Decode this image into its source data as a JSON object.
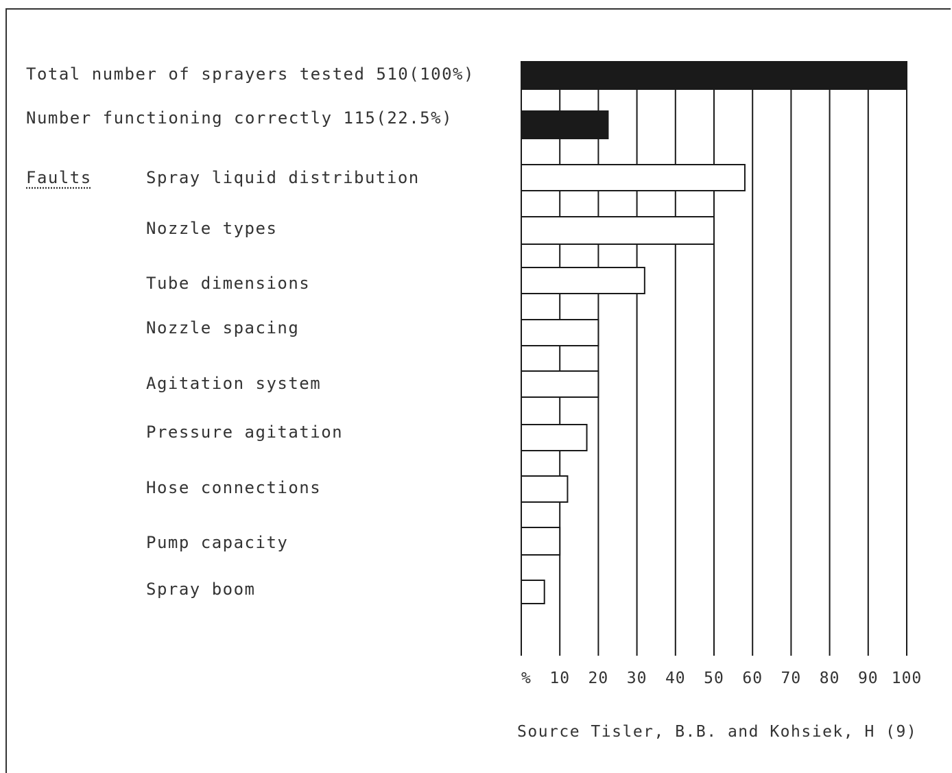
{
  "header": {
    "total_label": "Total number of sprayers tested 510(100%)",
    "correct_label": "Number functioning correctly 115(22.5%)",
    "faults_label": "Faults"
  },
  "faults": [
    "Spray liquid distribution",
    "Nozzle types",
    "Tube dimensions",
    "Nozzle spacing",
    "Agitation system",
    "Pressure agitation",
    "Hose connections",
    "Pump capacity",
    "Spray boom"
  ],
  "source": "Source Tisler, B.B. and Kohsiek, H (9)",
  "chart_data": {
    "type": "bar",
    "orientation": "horizontal",
    "categories": [
      "Total number of sprayers tested",
      "Number functioning correctly",
      "Spray liquid distribution",
      "Nozzle types",
      "Tube dimensions",
      "Nozzle spacing",
      "Agitation system",
      "Pressure agitation",
      "Hose connections",
      "Pump capacity",
      "Spray boom"
    ],
    "values": [
      100,
      22.5,
      58,
      50,
      32,
      20,
      20,
      17,
      12,
      10,
      6
    ],
    "fill": [
      "black",
      "black",
      "white",
      "white",
      "white",
      "white",
      "white",
      "white",
      "white",
      "white",
      "white"
    ],
    "xlim": [
      0,
      100
    ],
    "xticks": [
      "%",
      "10",
      "20",
      "30",
      "40",
      "50",
      "60",
      "70",
      "80",
      "90",
      "100"
    ],
    "grid": true,
    "colors": {
      "dark_bar": "#1a1a1a",
      "light_bar": "#ffffff",
      "line": "#1a1a1a"
    }
  }
}
